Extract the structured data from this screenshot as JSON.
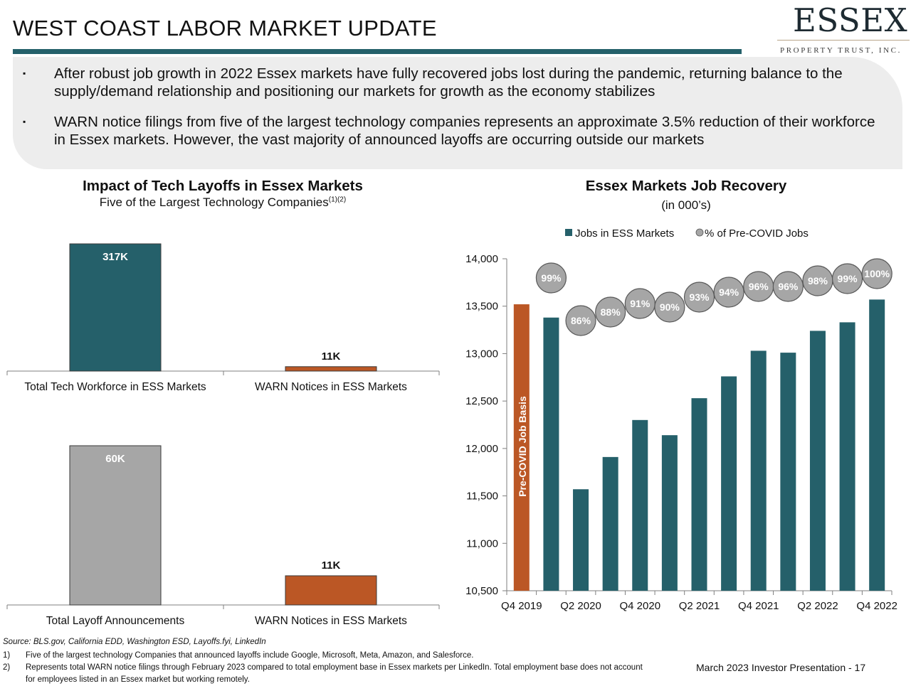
{
  "header": {
    "title": "WEST COAST LABOR MARKET UPDATE",
    "logo_main": "ESSEX",
    "logo_sub": "PROPERTY TRUST, INC."
  },
  "bullets": [
    {
      "marker": "▪",
      "text": "After robust job growth in 2022 Essex markets have fully recovered jobs lost during the pandemic, returning balance to the supply/demand relationship and positioning our markets for growth as the economy stabilizes"
    },
    {
      "marker": "▪",
      "text": "WARN notice filings from five of the largest technology companies represents an approximate 3.5% reduction of their workforce in Essex markets. However, the vast majority of announced layoffs are occurring outside our markets"
    }
  ],
  "left_panel": {
    "title": "Impact of Tech Layoffs in Essex Markets",
    "subtitle": "Five of the Largest Technology Companies",
    "subtitle_sup": "(1)(2)"
  },
  "right_panel": {
    "title": "Essex Markets Job Recovery",
    "subtitle": "(in 000’s)"
  },
  "colors": {
    "teal": "#25606a",
    "orange": "#bb5725",
    "gray_bar": "#a6a6a6",
    "bubble": "#a6a6a6",
    "rule": "#24606a"
  },
  "chart_data": [
    {
      "type": "bar",
      "id": "tech-workforce",
      "categories": [
        "Total Tech Workforce in ESS Markets",
        "WARN Notices in ESS Markets"
      ],
      "values": [
        317,
        11
      ],
      "value_labels": [
        "317K",
        "11K"
      ],
      "bar_colors": [
        "#25606a",
        "#bb5725"
      ],
      "unit": "K"
    },
    {
      "type": "bar",
      "id": "layoff-announcements",
      "categories": [
        "Total Layoff Announcements",
        "WARN Notices in ESS Markets"
      ],
      "values": [
        60,
        11
      ],
      "value_labels": [
        "60K",
        "11K"
      ],
      "bar_colors": [
        "#a6a6a6",
        "#bb5725"
      ],
      "unit": "K"
    },
    {
      "type": "bar",
      "id": "job-recovery",
      "title": "Essex Markets Job Recovery",
      "subtitle": "(in 000’s)",
      "legend": [
        "Jobs in ESS Markets",
        "% of Pre-COVID Jobs"
      ],
      "legend_position": "top",
      "x_tick_labels": [
        "Q4 2019",
        "Q2 2020",
        "Q4 2020",
        "Q2 2021",
        "Q4 2021",
        "Q2 2022",
        "Q4 2022"
      ],
      "y_tick_labels": [
        "14,000",
        "13,500",
        "13,000",
        "12,500",
        "12,000",
        "11,500",
        "11,000",
        "10,500"
      ],
      "ylim": [
        10500,
        14000
      ],
      "y_ticks": [
        14000,
        13500,
        13000,
        12500,
        12000,
        11500,
        11000,
        10500
      ],
      "baseline_label": "Pre-COVID Job Basis",
      "series": [
        {
          "name": "Jobs in ESS Markets",
          "values": [
            13520,
            13380,
            11570,
            11910,
            12300,
            12140,
            12530,
            12760,
            13030,
            13010,
            13240,
            13330,
            13570
          ]
        },
        {
          "name": "% of Pre-COVID Jobs",
          "labels": [
            "99%",
            "86%",
            "88%",
            "91%",
            "90%",
            "93%",
            "94%",
            "96%",
            "96%",
            "98%",
            "99%",
            "100%"
          ]
        }
      ]
    }
  ],
  "footnotes": {
    "source": "Source: BLS.gov, California EDD, Washington ESD, Layoffs.fyi, LinkedIn",
    "items": [
      {
        "num": "1)",
        "text": "Five of the largest technology Companies that announced layoffs include Google, Microsoft, Meta, Amazon, and Salesforce."
      },
      {
        "num": "2)",
        "text": "Represents total WARN notice filings through February 2023 compared to total employment base in Essex markets per LinkedIn. Total employment base does not account for employees listed in an Essex market but working remotely."
      }
    ],
    "page_label": "March 2023 Investor Presentation -  17"
  }
}
